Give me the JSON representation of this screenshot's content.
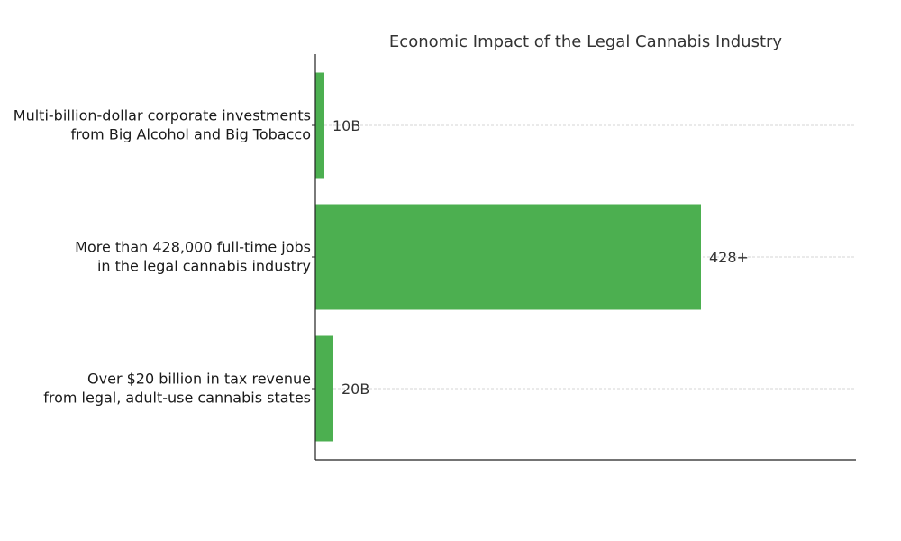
{
  "chart_data": {
    "type": "bar",
    "orientation": "horizontal",
    "title": "Economic Impact of the Legal Cannabis Industry",
    "xlabel": "",
    "ylabel": "",
    "categories": [
      [
        "Multi-billion-dollar corporate investments",
        "from Big Alcohol and Big Tobacco"
      ],
      [
        "More than 428,000 full-time jobs",
        "in the legal cannabis industry"
      ],
      [
        "Over $20 billion in tax revenue",
        "from legal, adult-use cannabis states"
      ]
    ],
    "values": [
      10,
      428,
      20
    ],
    "data_labels": [
      "10B",
      "428+",
      "20B"
    ],
    "xlim": [
      0,
      600
    ],
    "grid": "horizontal dashed",
    "bar_color": "#4caf50"
  }
}
